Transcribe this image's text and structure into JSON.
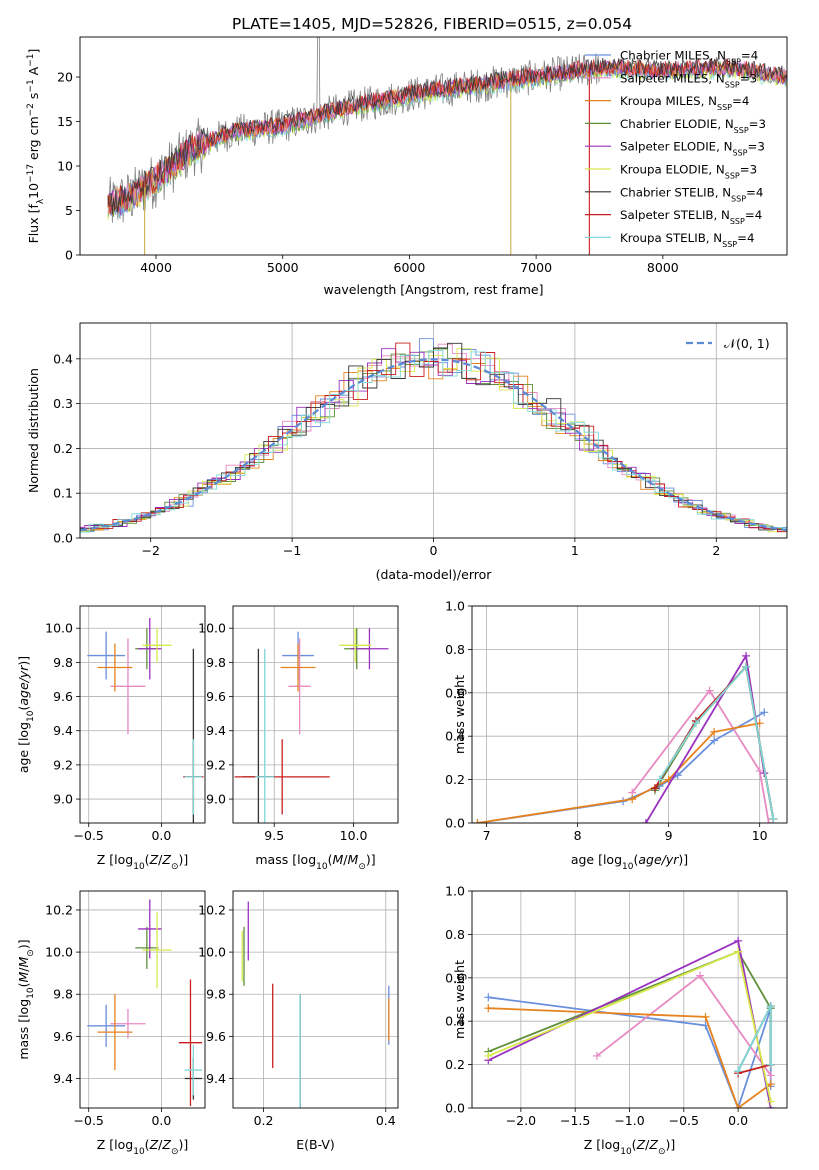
{
  "title": "PLATE=1405, MJD=52826, FIBERID=0515, z=0.054",
  "models": [
    {
      "name": "Chabrier MILES, N",
      "sub": "SSP",
      "tail": "=4",
      "color": "#6a8fdc"
    },
    {
      "name": "Salpeter MILES, N",
      "sub": "SSP",
      "tail": "=3",
      "color": "#e78ac3"
    },
    {
      "name": "Kroupa MILES, N",
      "sub": "SSP",
      "tail": "=4",
      "color": "#e6821e"
    },
    {
      "name": "Chabrier ELODIE, N",
      "sub": "SSP",
      "tail": "=3",
      "color": "#5f8f3a"
    },
    {
      "name": "Salpeter ELODIE, N",
      "sub": "SSP",
      "tail": "=3",
      "color": "#9a32c0"
    },
    {
      "name": "Kroupa ELODIE, N",
      "sub": "SSP",
      "tail": "=3",
      "color": "#d7e84a"
    },
    {
      "name": "Chabrier STELIB, N",
      "sub": "SSP",
      "tail": "=4",
      "color": "#333333"
    },
    {
      "name": "Salpeter STELIB, N",
      "sub": "SSP",
      "tail": "=4",
      "color": "#c81e1e"
    },
    {
      "name": "Kroupa STELIB, N",
      "sub": "SSP",
      "tail": "=4",
      "color": "#7fd8d8"
    }
  ],
  "chart_data": [
    {
      "id": "spectrum",
      "type": "line",
      "xlabel": "wavelength [Angstrom, rest frame]",
      "ylabel_parts": [
        "Flux [f",
        "λ",
        "10",
        "−17",
        " erg cm",
        "−2",
        " s",
        "−1",
        " A",
        "−1",
        "]"
      ],
      "xlim": [
        3400,
        8980
      ],
      "ylim": [
        0,
        24.5
      ],
      "xticks": [
        4000,
        5000,
        6000,
        7000,
        8000
      ],
      "yticks": [
        0,
        5,
        10,
        15,
        20
      ],
      "data_range": [
        3620,
        9000
      ],
      "continuum_anchors": [
        [
          3620,
          5.5
        ],
        [
          3800,
          6.5
        ],
        [
          4000,
          8.5
        ],
        [
          4300,
          12
        ],
        [
          4600,
          13.8
        ],
        [
          5000,
          14.5
        ],
        [
          5500,
          16.5
        ],
        [
          6000,
          18
        ],
        [
          6500,
          19
        ],
        [
          7000,
          20
        ],
        [
          7500,
          21
        ],
        [
          8000,
          20.7
        ],
        [
          8500,
          21
        ],
        [
          9000,
          20
        ]
      ]
    },
    {
      "id": "residuals",
      "type": "step",
      "xlabel": "(data-model)/error",
      "ylabel": "Normed distribution",
      "xlim": [
        -2.5,
        2.5
      ],
      "ylim": [
        0,
        0.48
      ],
      "xticks": [
        -2,
        -1,
        0,
        1,
        2
      ],
      "yticks": [
        0,
        0.1,
        0.2,
        0.3,
        0.4
      ],
      "reference_legend": "𝒩(0, 1)",
      "reference_color": "#5b8ad6",
      "bin_width": 0.1
    },
    {
      "id": "age_vs_Z",
      "type": "errorbar",
      "xlabel": "Z [log10(Z/Z⊙)]",
      "ylabel": "age  [log10(age/yr)]",
      "xlim": [
        -0.56,
        0.3
      ],
      "ylim": [
        8.86,
        10.13
      ],
      "xticks": [
        -0.5,
        0.0
      ],
      "yticks": [
        9.0,
        9.2,
        9.4,
        9.6,
        9.8,
        10.0
      ],
      "points": [
        {
          "m": 0,
          "x": -0.38,
          "y": 9.84,
          "xerr": 0.13,
          "yerr": 0.14
        },
        {
          "m": 1,
          "x": -0.23,
          "y": 9.66,
          "xerr": 0.12,
          "yerr": 0.28
        },
        {
          "m": 2,
          "x": -0.32,
          "y": 9.77,
          "xerr": 0.12,
          "yerr": 0.14
        },
        {
          "m": 3,
          "x": -0.1,
          "y": 9.88,
          "xerr": 0.08,
          "yerr": 0.12
        },
        {
          "m": 4,
          "x": -0.08,
          "y": 9.88,
          "xerr": 0.08,
          "yerr": 0.18
        },
        {
          "m": 5,
          "x": -0.03,
          "y": 9.9,
          "xerr": 0.1,
          "yerr": 0.1
        },
        {
          "m": 6,
          "x": 0.22,
          "y": 9.13,
          "xerr": 0.06,
          "yerr": 0.75
        },
        {
          "m": 7,
          "x": 0.22,
          "y": 9.13,
          "xerr": 0.07,
          "yerr": 0.2
        },
        {
          "m": 8,
          "x": 0.22,
          "y": 9.13,
          "xerr": 0.06,
          "yerr": 0.22
        }
      ]
    },
    {
      "id": "age_vs_mass",
      "type": "errorbar",
      "xlabel": "mass [log10(M/M⊙)]",
      "ylabel": "",
      "xlim": [
        9.24,
        10.28
      ],
      "ylim": [
        8.86,
        10.13
      ],
      "xticks": [
        9.5,
        10.0
      ],
      "yticks": [
        9.0,
        9.2,
        9.4,
        9.6,
        9.8,
        10.0
      ],
      "points": [
        {
          "m": 0,
          "x": 9.65,
          "y": 9.84,
          "xerr": 0.1,
          "yerr": 0.14
        },
        {
          "m": 1,
          "x": 9.66,
          "y": 9.66,
          "xerr": 0.07,
          "yerr": 0.28
        },
        {
          "m": 2,
          "x": 9.65,
          "y": 9.77,
          "xerr": 0.11,
          "yerr": 0.14
        },
        {
          "m": 3,
          "x": 10.02,
          "y": 9.88,
          "xerr": 0.08,
          "yerr": 0.12
        },
        {
          "m": 4,
          "x": 10.1,
          "y": 9.88,
          "xerr": 0.12,
          "yerr": 0.12
        },
        {
          "m": 5,
          "x": 10.01,
          "y": 9.9,
          "xerr": 0.1,
          "yerr": 0.1
        },
        {
          "m": 6,
          "x": 9.4,
          "y": 9.13,
          "xerr": 0.1,
          "yerr": 0.75
        },
        {
          "m": 7,
          "x": 9.55,
          "y": 9.13,
          "xerr": 0.3,
          "yerr": 0.22
        },
        {
          "m": 8,
          "x": 9.44,
          "y": 9.13,
          "xerr": 0.06,
          "yerr": 0.75
        }
      ]
    },
    {
      "id": "weight_vs_age",
      "type": "line",
      "xlabel": "age  [log10(age/yr)]",
      "ylabel": "mass weight",
      "xlim": [
        6.84,
        10.3
      ],
      "ylim": [
        0,
        1.0
      ],
      "xticks": [
        7,
        8,
        9,
        10
      ],
      "yticks": [
        0.0,
        0.2,
        0.4,
        0.6,
        0.8,
        1.0
      ],
      "series": [
        {
          "m": 0,
          "x": [
            6.9,
            8.5,
            8.9,
            9.1,
            9.5,
            10.05
          ],
          "y": [
            0.0,
            0.1,
            0.17,
            0.22,
            0.38,
            0.51
          ]
        },
        {
          "m": 1,
          "x": [
            8.6,
            9.45,
            10.0,
            10.1
          ],
          "y": [
            0.14,
            0.61,
            0.24,
            0.0
          ]
        },
        {
          "m": 2,
          "x": [
            6.9,
            8.6,
            9.0,
            9.5,
            10.0
          ],
          "y": [
            0.0,
            0.11,
            0.2,
            0.42,
            0.46
          ]
        },
        {
          "m": 3,
          "x": [
            8.85,
            9.3,
            9.85,
            10.15
          ],
          "y": [
            0.15,
            0.46,
            0.72,
            0.02
          ]
        },
        {
          "m": 4,
          "x": [
            8.75,
            9.85,
            10.05
          ],
          "y": [
            0.0,
            0.77,
            0.23
          ]
        },
        {
          "m": 5,
          "x": [
            8.9,
            9.3,
            9.85,
            10.15
          ],
          "y": [
            0.2,
            0.46,
            0.72,
            0.02
          ]
        },
        {
          "m": 6,
          "x": [
            8.85,
            9.3,
            9.85,
            10.15
          ],
          "y": [
            0.16,
            0.47,
            0.72,
            0.02
          ]
        },
        {
          "m": 7,
          "x": [
            8.85,
            9.3,
            9.85,
            10.15
          ],
          "y": [
            0.16,
            0.47,
            0.72,
            0.02
          ]
        },
        {
          "m": 8,
          "x": [
            8.9,
            9.3,
            9.85,
            10.15
          ],
          "y": [
            0.2,
            0.46,
            0.72,
            0.02
          ]
        }
      ]
    },
    {
      "id": "mass_vs_Z",
      "type": "errorbar",
      "xlabel": "Z [log10(Z/Z⊙)]",
      "ylabel": "mass [log10(M/M⊙)]",
      "xlim": [
        -0.56,
        0.3
      ],
      "ylim": [
        9.26,
        10.29
      ],
      "xticks": [
        -0.5,
        0.0
      ],
      "yticks": [
        9.4,
        9.6,
        9.8,
        10.0,
        10.2
      ],
      "points": [
        {
          "m": 0,
          "x": -0.38,
          "y": 9.65,
          "xerr": 0.13,
          "yerr": 0.1
        },
        {
          "m": 1,
          "x": -0.23,
          "y": 9.66,
          "xerr": 0.12,
          "yerr": 0.07
        },
        {
          "m": 2,
          "x": -0.32,
          "y": 9.62,
          "xerr": 0.12,
          "yerr": 0.18
        },
        {
          "m": 3,
          "x": -0.1,
          "y": 10.02,
          "xerr": 0.08,
          "yerr": 0.1
        },
        {
          "m": 4,
          "x": -0.08,
          "y": 10.11,
          "xerr": 0.08,
          "yerr": 0.14
        },
        {
          "m": 5,
          "x": -0.03,
          "y": 10.01,
          "xerr": 0.1,
          "yerr": 0.18
        },
        {
          "m": 6,
          "x": 0.22,
          "y": 9.4,
          "xerr": 0.06,
          "yerr": 0.1
        },
        {
          "m": 7,
          "x": 0.2,
          "y": 9.57,
          "xerr": 0.08,
          "yerr": 0.3
        },
        {
          "m": 8,
          "x": 0.22,
          "y": 9.44,
          "xerr": 0.06,
          "yerr": 0.12
        }
      ]
    },
    {
      "id": "mass_vs_ebv",
      "type": "errorbar",
      "xlabel": "E(B-V)",
      "ylabel": "",
      "xlim": [
        0.15,
        0.42
      ],
      "ylim": [
        9.26,
        10.29
      ],
      "xticks": [
        0.2,
        0.4
      ],
      "yticks": [
        9.4,
        9.6,
        9.8,
        10.0,
        10.2
      ],
      "points": [
        {
          "m": 0,
          "x": 0.405,
          "y": 9.7,
          "xerr": 0.0,
          "yerr": 0.14
        },
        {
          "m": 2,
          "x": 0.405,
          "y": 9.68,
          "xerr": 0.0,
          "yerr": 0.1
        },
        {
          "m": 3,
          "x": 0.168,
          "y": 9.98,
          "xerr": 0.0,
          "yerr": 0.14
        },
        {
          "m": 4,
          "x": 0.175,
          "y": 10.1,
          "xerr": 0.0,
          "yerr": 0.14
        },
        {
          "m": 5,
          "x": 0.165,
          "y": 9.98,
          "xerr": 0.0,
          "yerr": 0.12
        },
        {
          "m": 6,
          "x": 0.26,
          "y": 9.53,
          "xerr": 0.0,
          "yerr": 0.27
        },
        {
          "m": 7,
          "x": 0.215,
          "y": 9.65,
          "xerr": 0.0,
          "yerr": 0.2
        },
        {
          "m": 8,
          "x": 0.26,
          "y": 9.53,
          "xerr": 0.0,
          "yerr": 0.27
        }
      ]
    },
    {
      "id": "weight_vs_Z",
      "type": "line",
      "xlabel": "Z [log10(Z/Z⊙)]",
      "ylabel": "mass weight",
      "xlim": [
        -2.45,
        0.45
      ],
      "ylim": [
        0,
        1.0
      ],
      "xticks": [
        -2.0,
        -1.5,
        -1.0,
        -0.5,
        0.0
      ],
      "yticks": [
        0.0,
        0.2,
        0.4,
        0.6,
        0.8,
        1.0
      ],
      "series": [
        {
          "m": 0,
          "x": [
            -2.3,
            -0.3,
            0.0,
            0.3,
            0.3
          ],
          "y": [
            0.51,
            0.38,
            0.0,
            0.46,
            0.1
          ]
        },
        {
          "m": 1,
          "x": [
            -1.3,
            -0.35,
            0.3
          ],
          "y": [
            0.24,
            0.61,
            0.15
          ]
        },
        {
          "m": 2,
          "x": [
            -2.3,
            -0.3,
            0.0,
            0.3
          ],
          "y": [
            0.46,
            0.42,
            0.0,
            0.11
          ]
        },
        {
          "m": 3,
          "x": [
            -2.3,
            0.0,
            0.3,
            0.3
          ],
          "y": [
            0.26,
            0.72,
            0.46,
            0.2
          ]
        },
        {
          "m": 4,
          "x": [
            -2.3,
            0.0,
            0.3
          ],
          "y": [
            0.22,
            0.77,
            0.0
          ]
        },
        {
          "m": 5,
          "x": [
            -2.3,
            0.0,
            0.3
          ],
          "y": [
            0.24,
            0.72,
            0.03
          ]
        },
        {
          "m": 6,
          "x": [
            0.0,
            0.3,
            0.3
          ],
          "y": [
            0.17,
            0.47,
            0.2
          ]
        },
        {
          "m": 7,
          "x": [
            0.0,
            0.3
          ],
          "y": [
            0.16,
            0.2
          ]
        },
        {
          "m": 8,
          "x": [
            0.0,
            0.3,
            0.3
          ],
          "y": [
            0.17,
            0.47,
            0.2
          ]
        }
      ]
    }
  ]
}
